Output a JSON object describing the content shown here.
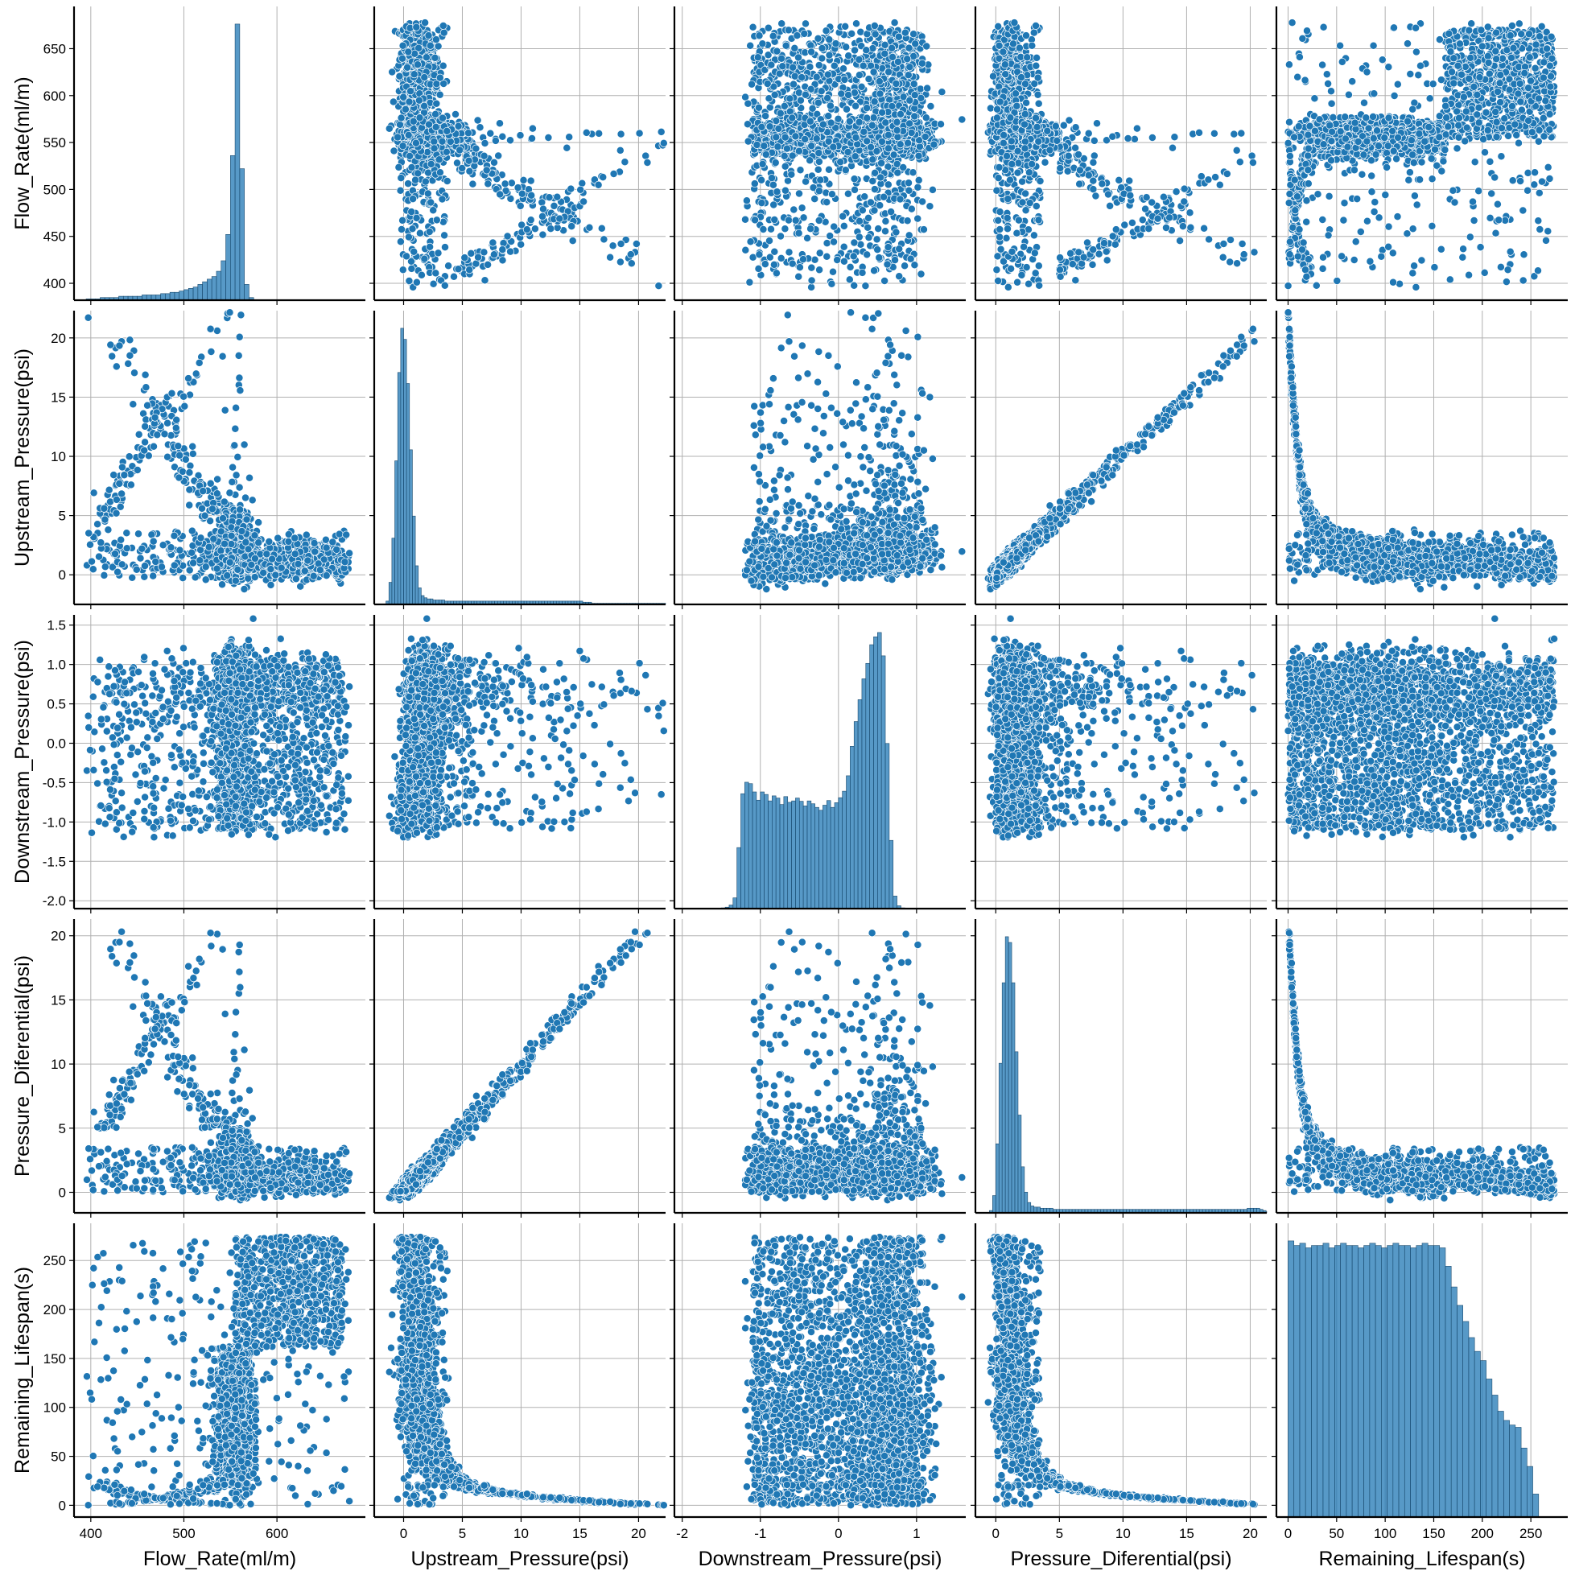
{
  "chart_data": {
    "type": "scatter",
    "kind": "pairplot",
    "diagonal": "histogram",
    "grid": true,
    "color": "#1f77b4",
    "variables": [
      {
        "label": "Flow_Rate(ml/m)",
        "lim": [
          382,
          695
        ],
        "ticks": [
          400,
          500,
          600
        ],
        "ylim": [
          382,
          695
        ],
        "yticks": [
          400,
          450,
          500,
          550,
          600,
          650
        ]
      },
      {
        "label": "Upstream_Pressure(psi)",
        "lim": [
          -2.5,
          22.3
        ],
        "ticks": [
          0,
          5,
          10,
          15,
          20
        ],
        "ylim": [
          -2.5,
          22.3
        ],
        "yticks": [
          0,
          5,
          10,
          15,
          20
        ]
      },
      {
        "label": "Downstream_Pressure(psi)",
        "lim": [
          -2.1,
          1.63
        ],
        "ticks": [
          -2,
          -1,
          0,
          1
        ],
        "ylim": [
          -2.1,
          1.63
        ],
        "yticks": [
          -2.0,
          -1.5,
          -1.0,
          -0.5,
          0.0,
          0.5,
          1.0,
          1.5
        ]
      },
      {
        "label": "Pressure_Diferential(psi)",
        "lim": [
          -1.6,
          21.3
        ],
        "ticks": [
          0,
          5,
          10,
          15,
          20
        ],
        "ylim": [
          -1.6,
          21.3
        ],
        "yticks": [
          0,
          5,
          10,
          15,
          20
        ]
      },
      {
        "label": "Remaining_Lifespan(s)",
        "lim": [
          -12,
          288
        ],
        "ticks": [
          0,
          50,
          100,
          150,
          200,
          250
        ],
        "ylim": [
          -12,
          288
        ],
        "yticks": [
          0,
          50,
          100,
          150,
          200,
          250
        ]
      }
    ],
    "histograms": [
      {
        "var": "Flow_Rate(ml/m)",
        "bin_start": 395,
        "bin_width": 5,
        "counts": [
          1,
          1,
          1,
          2,
          2,
          2,
          2,
          3,
          3,
          3,
          3,
          3,
          4,
          4,
          4,
          4,
          5,
          5,
          6,
          6,
          7,
          8,
          9,
          10,
          12,
          14,
          16,
          18,
          22,
          30,
          50,
          110,
          210,
          100,
          12,
          2,
          0,
          0,
          0,
          0,
          0,
          0,
          0,
          0,
          0,
          0,
          0,
          0,
          0,
          0,
          0,
          0,
          0,
          0,
          0,
          0
        ]
      },
      {
        "var": "Upstream_Pressure(psi)",
        "bin_start": -1.5,
        "bin_width": 0.25,
        "counts": [
          3,
          20,
          60,
          130,
          210,
          250,
          240,
          200,
          140,
          80,
          35,
          15,
          8,
          6,
          5,
          5,
          4,
          4,
          4,
          4,
          3,
          3,
          3,
          3,
          3,
          3,
          3,
          3,
          3,
          3,
          3,
          3,
          3,
          3,
          3,
          3,
          3,
          3,
          3,
          3,
          3,
          3,
          3,
          3,
          3,
          3,
          3,
          3,
          3,
          3,
          3,
          3,
          3,
          3,
          3,
          3,
          3,
          3,
          3,
          3,
          3,
          3,
          3,
          3,
          3,
          3,
          3,
          2,
          2,
          2,
          1,
          1,
          1,
          1,
          1,
          1,
          1,
          1,
          1,
          1,
          1,
          1,
          1,
          1,
          1,
          1,
          1,
          1,
          1,
          1,
          1,
          1,
          1,
          1,
          1,
          1,
          1,
          1,
          1
        ]
      },
      {
        "var": "Downstream_Pressure(psi)",
        "bin_start": -1.6,
        "bin_width": 0.05,
        "counts": [
          0,
          1,
          2,
          4,
          10,
          30,
          170,
          320,
          352,
          348,
          325,
          302,
          325,
          318,
          300,
          314,
          308,
          290,
          312,
          296,
          300,
          308,
          299,
          286,
          300,
          292,
          282,
          274,
          288,
          301,
          282,
          295,
          309,
          327,
          370,
          452,
          521,
          582,
          640,
          683,
          735,
          757,
          769,
          704,
          460,
          190,
          35,
          8,
          2,
          0,
          0,
          0,
          0,
          0
        ]
      },
      {
        "var": "Pressure_Diferential(psi)",
        "bin_start": -0.5,
        "bin_width": 0.25,
        "counts": [
          2,
          15,
          60,
          130,
          200,
          240,
          235,
          200,
          140,
          85,
          40,
          18,
          9,
          6,
          5,
          5,
          4,
          4,
          4,
          4,
          3,
          3,
          3,
          3,
          3,
          3,
          3,
          3,
          3,
          3,
          3,
          3,
          3,
          3,
          3,
          3,
          3,
          3,
          3,
          3,
          3,
          3,
          3,
          3,
          3,
          3,
          3,
          3,
          3,
          3,
          3,
          3,
          3,
          3,
          3,
          3,
          3,
          3,
          3,
          3,
          3,
          3,
          3,
          3,
          3,
          3,
          3,
          3,
          3,
          3,
          3,
          3,
          3,
          3,
          3,
          3,
          3,
          3,
          3,
          3,
          3,
          4,
          4,
          4,
          4,
          3,
          2,
          1
        ]
      },
      {
        "var": "Remaining_Lifespan(s)",
        "bin_start": 0,
        "bin_width": 6,
        "counts": [
          120,
          118,
          119,
          117,
          118,
          118,
          119,
          117,
          118,
          119,
          118,
          118,
          117,
          118,
          119,
          118,
          117,
          118,
          119,
          118,
          118,
          117,
          118,
          119,
          118,
          118,
          117,
          109,
          100,
          92,
          85,
          78,
          72,
          68,
          60,
          53,
          46,
          42,
          40,
          39,
          30,
          22,
          10,
          0
        ]
      }
    ]
  }
}
